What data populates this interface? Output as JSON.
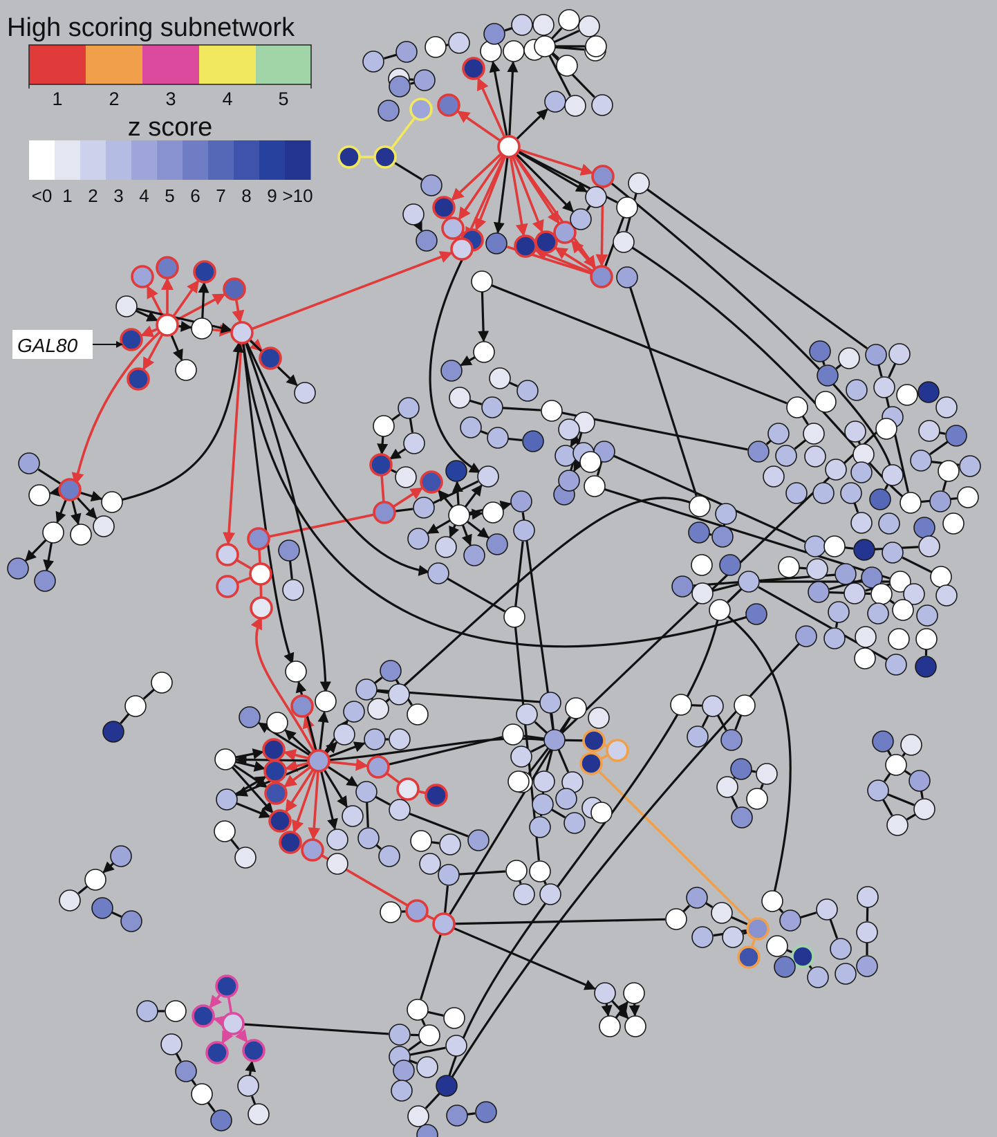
{
  "legend": {
    "subnetwork_title": "High scoring subnetwork",
    "subnetwork_colors": [
      "#e03a3a",
      "#f0a04a",
      "#dc4a9e",
      "#f2e860",
      "#a1d5a8"
    ],
    "subnetwork_labels": [
      "1",
      "2",
      "3",
      "4",
      "5"
    ],
    "zscore_title": "z score",
    "zscore_colors": [
      "#ffffff",
      "#e4e6f2",
      "#cdd1ec",
      "#b5bce3",
      "#9ea6d9",
      "#8892cf",
      "#6f7dc4",
      "#5568b8",
      "#3e54ac",
      "#26419e",
      "#243591"
    ],
    "zscore_labels": [
      "<0",
      "1",
      "2",
      "3",
      "4",
      "5",
      "6",
      "7",
      "8",
      "9",
      ">10"
    ]
  },
  "annotation": {
    "gene_label": "GAL80"
  },
  "colors": {
    "background": "#bbbdc0",
    "edge_default": "#111111",
    "edge_subnetwork_1": "#e03a3a",
    "edge_subnetwork_2": "#f0a04a",
    "edge_subnetwork_3": "#dc4a9e",
    "edge_subnetwork_4": "#f2e860",
    "node_outline_default": "#1a1a1a",
    "node_outline_subnetwork_5": "#a1d5a8"
  }
}
